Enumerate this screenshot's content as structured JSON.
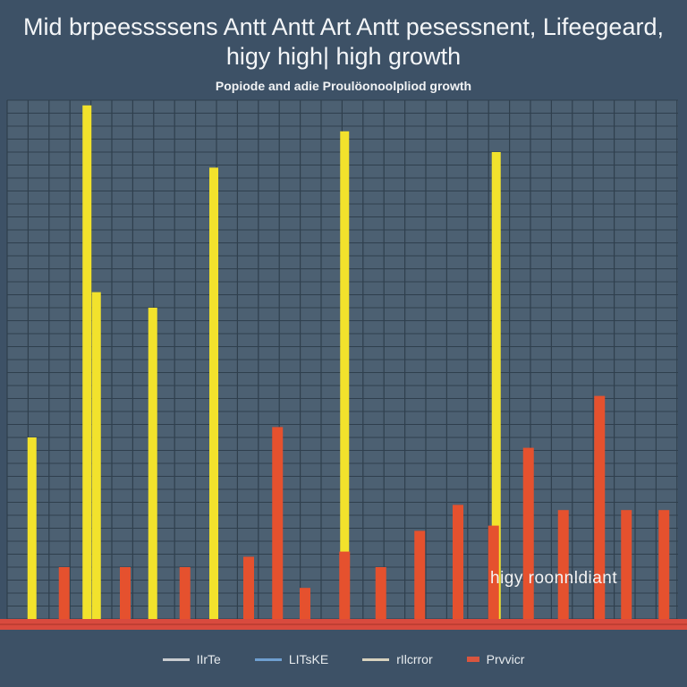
{
  "chart_data": {
    "type": "bar",
    "title": "Mid brpeessssens Antt Antt Art Antt pesessnent, Lifeegeard,",
    "title_line2": "higy high| high growth",
    "subtitle": "Popiode and adie Proulöonoolpliod growth",
    "annotation": "higy roonnldiant",
    "xlabel": "",
    "ylabel": "",
    "xlim": [
      0,
      100
    ],
    "ylim": [
      0,
      100
    ],
    "grid": true,
    "legend_position": "bottom",
    "legend": [
      {
        "label": "IIrTe",
        "color": "#c9ccd0"
      },
      {
        "label": "LITsKE",
        "color": "#6f9fd0"
      },
      {
        "label": "rIlcrror",
        "color": "#d8d2be"
      },
      {
        "label": "Prvvicr",
        "color": "#d9553e"
      }
    ],
    "series": [
      {
        "name": "yellow",
        "color": "#f2e22c",
        "x": [
          3.7,
          11.9,
          13.3,
          21.7,
          30.8,
          50.3,
          72.9
        ],
        "values": [
          35,
          99,
          63,
          60,
          87,
          94,
          90
        ]
      },
      {
        "name": "red",
        "color": "#e5512e",
        "x": [
          8.5,
          17.6,
          26.5,
          36,
          40.3,
          44.4,
          50.3,
          55.7,
          61.5,
          67.2,
          72.5,
          77.7,
          82.9,
          88.3,
          92.3,
          97.9
        ],
        "values": [
          10,
          10,
          10,
          12,
          37,
          6,
          13,
          10,
          17,
          22,
          18,
          33,
          21,
          43,
          21,
          21
        ]
      }
    ]
  }
}
